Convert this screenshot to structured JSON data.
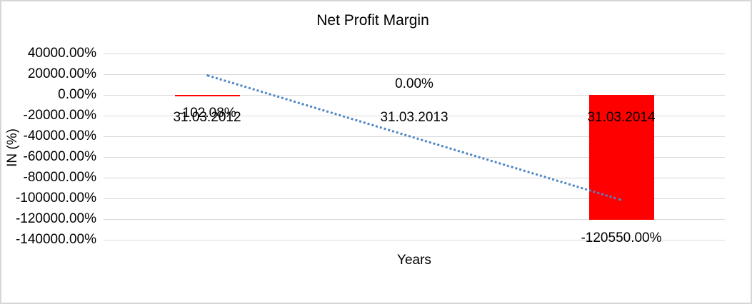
{
  "chart_data": {
    "type": "bar",
    "title": "Net Profit Margin",
    "xlabel": "Years",
    "ylabel": "IN (%)",
    "categories": [
      "31.03.2012",
      "31.03.2013",
      "31.03.2014"
    ],
    "series": [
      {
        "name": "Net Profit Margin",
        "values": [
          -102.08,
          0,
          -120550
        ],
        "data_labels": [
          "-102.08%",
          "0.00%",
          "-120550.00%"
        ],
        "color": "#ff0000"
      }
    ],
    "y_ticks": [
      "40000.00%",
      "20000.00%",
      "0.00%",
      "-20000.00%",
      "-40000.00%",
      "-60000.00%",
      "-80000.00%",
      "-100000.00%",
      "-120000.00%",
      "-140000.00%"
    ],
    "ylim": [
      -140000,
      40000
    ],
    "y_step": 20000,
    "grid": true,
    "legend_position": "none",
    "gridline_color": "#d9d9d9",
    "trendline": {
      "style": "dotted",
      "color": "#4e86c6",
      "start_category_index": 0,
      "end_category_index": 2,
      "start_value": 20000,
      "end_value": -100450
    }
  }
}
